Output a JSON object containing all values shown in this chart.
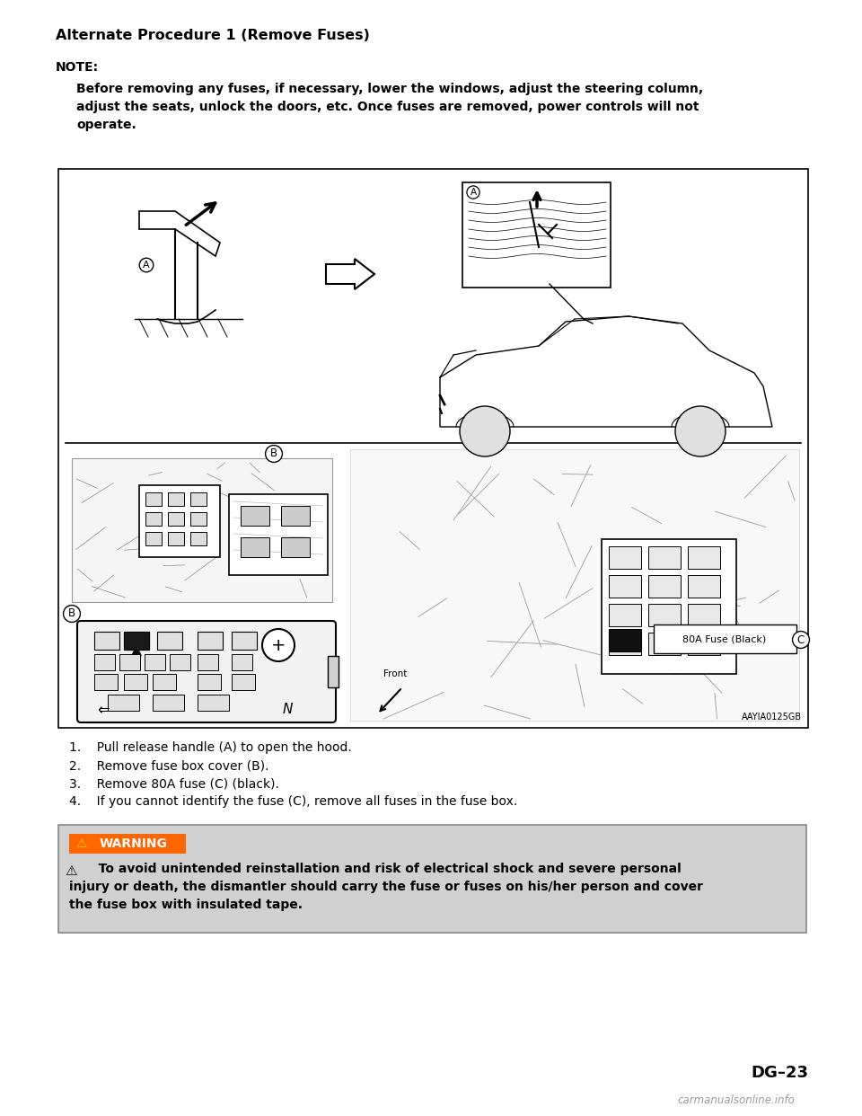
{
  "title": "Alternate Procedure 1 (Remove Fuses)",
  "note_label": "NOTE:",
  "note_text_line1": "Before removing any fuses, if necessary, lower the windows, adjust the steering column,",
  "note_text_line2": "adjust the seats, unlock the doors, etc. Once fuses are removed, power controls will not",
  "note_text_line3": "operate.",
  "steps": [
    "1.    Pull release handle (A) to open the hood.",
    "2.    Remove fuse box cover (B).",
    "3.    Remove 80A fuse (C) (black).",
    "4.    If you cannot identify the fuse (C), remove all fuses in the fuse box."
  ],
  "warning_title": "WARNING",
  "warning_text_line1": "   To avoid unintended reinstallation and risk of electrical shock and severe personal",
  "warning_text_line2": "injury or death, the dismantler should carry the fuse or fuses on his/her person and cover",
  "warning_text_line3": "the fuse box with insulated tape.",
  "diagram_label": "AAYIA0125GB",
  "page_number": "DG–23",
  "watermark": "carmanualsonline.info",
  "bg_color": "#ffffff",
  "warning_bg": "#d0d0d0",
  "warning_title_bg": "#ff6600",
  "diagram_box_color": "#000000",
  "title_font_size": 11.5,
  "note_label_font_size": 10,
  "note_text_font_size": 10,
  "steps_font_size": 10,
  "warning_font_size": 10,
  "page_number_font_size": 13
}
